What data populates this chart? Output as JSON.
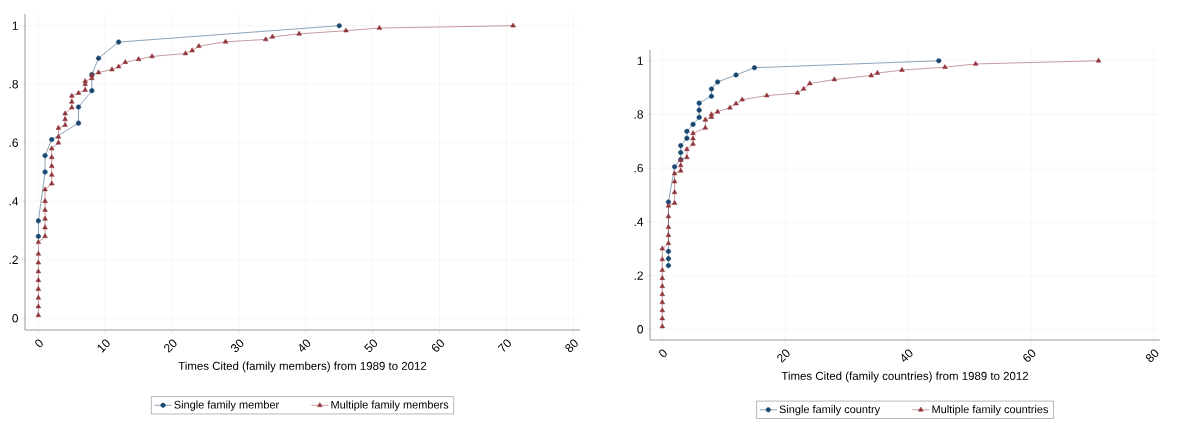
{
  "chart_data": [
    {
      "type": "line",
      "xlabel": "Times Cited (family members) from 1989 to 2012",
      "xlim": [
        -2,
        81
      ],
      "ylim": [
        -0.04,
        1.04
      ],
      "xticks": [
        0,
        10,
        20,
        30,
        40,
        50,
        60,
        70,
        80
      ],
      "yticks": [
        0,
        {
          "value": 0.2,
          "label": ".2"
        },
        {
          "value": 0.4,
          "label": ".4"
        },
        {
          "value": 0.6,
          "label": ".6"
        },
        {
          "value": 0.8,
          "label": ".8"
        },
        1
      ],
      "grid": true,
      "legend": "bottom",
      "series": [
        {
          "name": "Single family member",
          "color": "#1a476f",
          "marker": "circle",
          "x": [
            0,
            0,
            1,
            1,
            2,
            6,
            6,
            8,
            8,
            9,
            12,
            45
          ],
          "values": [
            0.28,
            0.333,
            0.5,
            0.556,
            0.611,
            0.667,
            0.722,
            0.778,
            0.833,
            0.889,
            0.944,
            1
          ]
        },
        {
          "name": "Multiple family members",
          "color": "#90353b",
          "marker": "triangle",
          "x": [
            0,
            0,
            0,
            0,
            0,
            0,
            0,
            0,
            0,
            1,
            1,
            1,
            1,
            1,
            1,
            2,
            2,
            2,
            2,
            2,
            3,
            3,
            3,
            4,
            4,
            4,
            5,
            5,
            5,
            6,
            7,
            7,
            7,
            8,
            8,
            9,
            11,
            12,
            13,
            15,
            17,
            22,
            23,
            24,
            28,
            34,
            35,
            39,
            46,
            51,
            71
          ],
          "values": [
            0.01,
            0.04,
            0.07,
            0.1,
            0.13,
            0.16,
            0.19,
            0.22,
            0.26,
            0.28,
            0.31,
            0.34,
            0.37,
            0.4,
            0.44,
            0.46,
            0.49,
            0.52,
            0.55,
            0.58,
            0.6,
            0.62,
            0.65,
            0.66,
            0.68,
            0.7,
            0.72,
            0.74,
            0.76,
            0.77,
            0.78,
            0.8,
            0.81,
            0.82,
            0.83,
            0.84,
            0.85,
            0.86,
            0.875,
            0.885,
            0.895,
            0.905,
            0.915,
            0.93,
            0.945,
            0.953,
            0.962,
            0.972,
            0.983,
            0.992,
            1
          ]
        }
      ]
    },
    {
      "type": "line",
      "xlabel": "Times Cited (family countries) from 1989 to 2012",
      "xlim": [
        -2,
        81
      ],
      "ylim": [
        -0.04,
        1.04
      ],
      "xticks": [
        0,
        20,
        40,
        60,
        80
      ],
      "yticks": [
        0,
        {
          "value": 0.2,
          "label": ".2"
        },
        {
          "value": 0.4,
          "label": ".4"
        },
        {
          "value": 0.6,
          "label": ".6"
        },
        {
          "value": 0.8,
          "label": ".8"
        },
        1
      ],
      "grid": true,
      "legend": "bottom",
      "series": [
        {
          "name": "Single family country",
          "color": "#1a476f",
          "marker": "circle",
          "x": [
            1,
            1,
            1,
            1,
            2,
            3,
            3,
            3,
            4,
            4,
            5,
            6,
            6,
            6,
            8,
            8,
            9,
            12,
            15,
            45
          ],
          "values": [
            0.237,
            0.263,
            0.29,
            0.474,
            0.605,
            0.632,
            0.658,
            0.684,
            0.711,
            0.737,
            0.763,
            0.789,
            0.816,
            0.842,
            0.868,
            0.895,
            0.921,
            0.947,
            0.974,
            1
          ]
        },
        {
          "name": "Multiple family countries",
          "color": "#90353b",
          "marker": "triangle",
          "x": [
            0,
            0,
            0,
            0,
            0,
            0,
            0,
            0,
            0,
            0,
            1,
            1,
            1,
            1,
            1,
            2,
            2,
            2,
            2,
            3,
            3,
            3,
            4,
            4,
            5,
            5,
            5,
            7,
            7,
            8,
            8,
            9,
            11,
            12,
            13,
            17,
            22,
            23,
            24,
            28,
            34,
            35,
            39,
            46,
            51,
            71
          ],
          "values": [
            0.01,
            0.04,
            0.07,
            0.1,
            0.13,
            0.16,
            0.19,
            0.22,
            0.26,
            0.3,
            0.32,
            0.35,
            0.38,
            0.42,
            0.46,
            0.47,
            0.51,
            0.55,
            0.58,
            0.59,
            0.61,
            0.63,
            0.64,
            0.67,
            0.69,
            0.71,
            0.73,
            0.75,
            0.78,
            0.79,
            0.8,
            0.81,
            0.825,
            0.84,
            0.855,
            0.87,
            0.88,
            0.895,
            0.915,
            0.93,
            0.945,
            0.954,
            0.965,
            0.976,
            0.988,
            1
          ]
        }
      ]
    }
  ]
}
